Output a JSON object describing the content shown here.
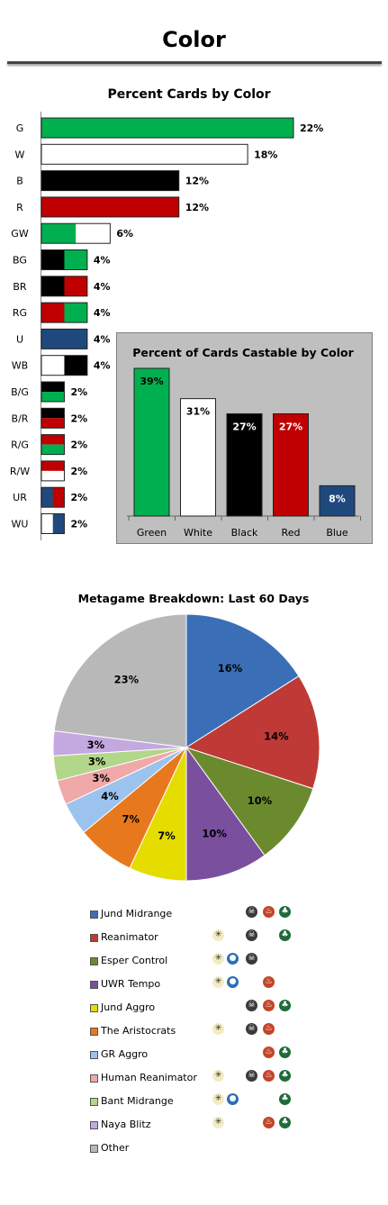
{
  "page_title": "Color",
  "chart_data": [
    {
      "type": "bar",
      "orientation": "horizontal",
      "title": "Percent Cards by Color",
      "categories": [
        "G",
        "W",
        "B",
        "R",
        "GW",
        "BG",
        "BR",
        "RG",
        "U",
        "WB",
        "B/G",
        "B/R",
        "R/G",
        "R/W",
        "UR",
        "WU"
      ],
      "values": [
        22,
        18,
        12,
        12,
        6,
        4,
        4,
        4,
        4,
        4,
        2,
        2,
        2,
        2,
        2,
        2
      ],
      "value_labels": [
        "22%",
        "18%",
        "12%",
        "12%",
        "6%",
        "4%",
        "4%",
        "4%",
        "4%",
        "4%",
        "2%",
        "2%",
        "2%",
        "2%",
        "2%",
        "2%"
      ],
      "bar_colors": [
        [
          "G"
        ],
        [
          "W"
        ],
        [
          "B"
        ],
        [
          "R"
        ],
        [
          "G",
          "W"
        ],
        [
          "B",
          "G"
        ],
        [
          "B",
          "R"
        ],
        [
          "R",
          "G"
        ],
        [
          "U"
        ],
        [
          "W",
          "B"
        ],
        [
          "B/G"
        ],
        [
          "B/R"
        ],
        [
          "R/G"
        ],
        [
          "R/W"
        ],
        [
          "U",
          "R"
        ],
        [
          "W",
          "U"
        ]
      ],
      "xlim": [
        0,
        22
      ]
    },
    {
      "type": "bar",
      "title": "Percent of Cards Castable by Color",
      "categories": [
        "Green",
        "White",
        "Black",
        "Red",
        "Blue"
      ],
      "values": [
        39,
        31,
        27,
        27,
        8
      ],
      "value_labels": [
        "39%",
        "31%",
        "27%",
        "27%",
        "8%"
      ],
      "colors": [
        "#00b050",
        "#ffffff",
        "#000000",
        "#c00000",
        "#1f497d"
      ],
      "ylim": [
        0,
        39
      ]
    },
    {
      "type": "pie",
      "title": "Metagame Breakdown: Last 60 Days",
      "labels": [
        "Jund Midrange",
        "Reanimator",
        "Esper Control",
        "UWR Tempo",
        "Jund Aggro",
        "The Aristocrats",
        "GR Aggro",
        "Human Reanimator",
        "Bant Midrange",
        "Naya Blitz",
        "Other"
      ],
      "values": [
        16,
        14,
        10,
        10,
        7,
        7,
        4,
        3,
        3,
        3,
        23
      ],
      "value_labels": [
        "16%",
        "14%",
        "10%",
        "10%",
        "7%",
        "7%",
        "4%",
        "3%",
        "3%",
        "3%",
        "23%"
      ],
      "colors": [
        "#3a6fb8",
        "#bf3a36",
        "#6b8a2e",
        "#7a4f9e",
        "#e5dc00",
        "#e8781e",
        "#9cc2ee",
        "#f0a8a8",
        "#b2d68a",
        "#c4a8e0",
        "#b8b8b8"
      ],
      "legend_mana": [
        [
          "B",
          "R",
          "G"
        ],
        [
          "W",
          "B",
          "G"
        ],
        [
          "W",
          "U",
          "B"
        ],
        [
          "W",
          "U",
          "R"
        ],
        [
          "B",
          "R",
          "G"
        ],
        [
          "W",
          "B",
          "R"
        ],
        [
          "R",
          "G"
        ],
        [
          "W",
          "B",
          "R",
          "G"
        ],
        [
          "W",
          "U",
          "G"
        ],
        [
          "W",
          "R",
          "G"
        ],
        []
      ]
    }
  ],
  "colors": {
    "G": "#00b050",
    "W": "#ffffff",
    "B": "#000000",
    "R": "#c00000",
    "U": "#1f497d"
  },
  "mana_icons": {
    "W": "sun-icon",
    "U": "drop-icon",
    "B": "skull-icon",
    "R": "fire-icon",
    "G": "tree-icon"
  }
}
